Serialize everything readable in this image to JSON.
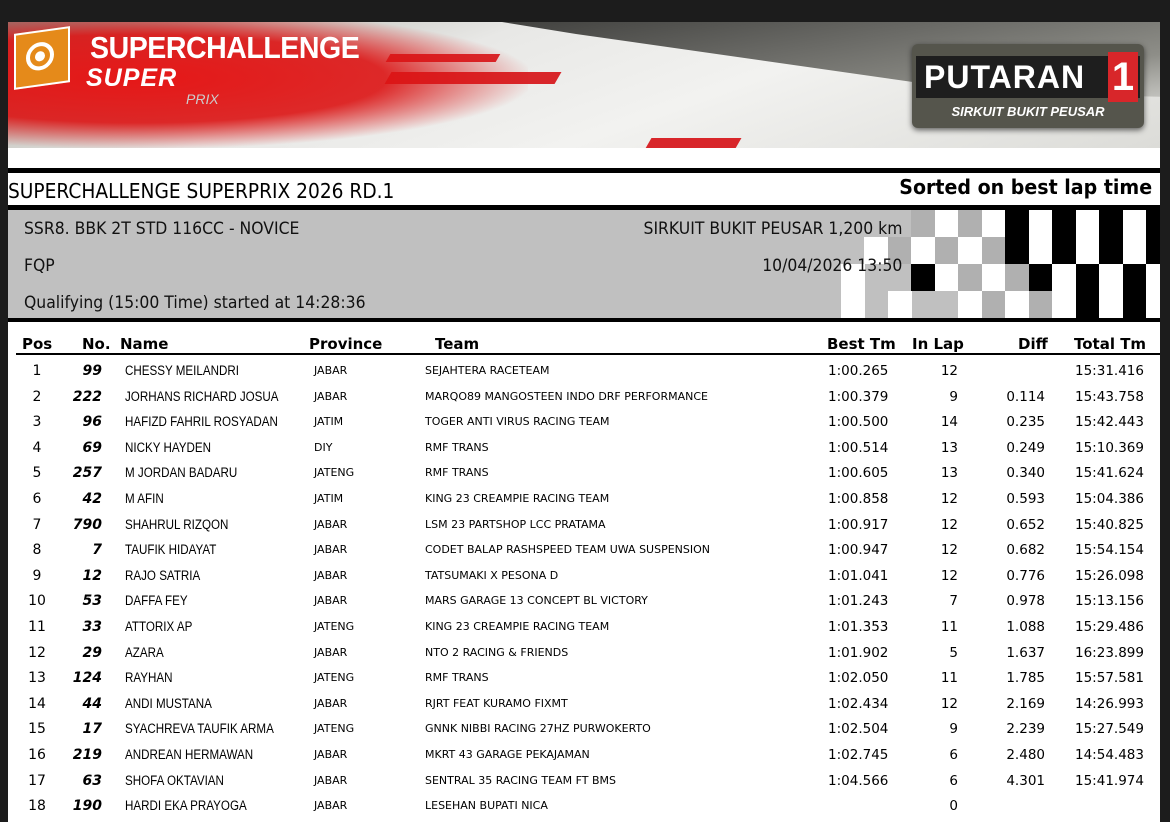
{
  "banner": {
    "brand_title": "SUPERCHALLENGE",
    "brand_sub": "SUPER",
    "brand_sub2": "PRIX",
    "round_label": "PUTARAN",
    "round_number": "1",
    "circuit": "SIRKUIT BUKIT PEUSAR",
    "accent_color": "#d8262a"
  },
  "event": {
    "title": "SUPERCHALLENGE SUPERPRIX 2026 RD.1",
    "sort_label": "Sorted on best lap time",
    "class_name": "SSR8. BBK 2T STD 116CC - NOVICE",
    "circuit_length": "SIRKUIT BUKIT PEUSAR 1,200 km",
    "session_code": "FQP",
    "datetime": "10/04/2026 13:50",
    "session_info": "Qualifying (15:00 Time) started at 14:28:36"
  },
  "table": {
    "headers": {
      "pos": "Pos",
      "no": "No.",
      "name": "Name",
      "province": "Province",
      "team": "Team",
      "best": "Best Tm",
      "lap": "In Lap",
      "diff": "Diff",
      "total": "Total Tm"
    },
    "rows": [
      {
        "pos": "1",
        "no": "99",
        "name": "CHESSY MEILANDRI",
        "province": "JABAR",
        "team": "SEJAHTERA RACETEAM",
        "best": "1:00.265",
        "lap": "12",
        "diff": "",
        "total": "15:31.416"
      },
      {
        "pos": "2",
        "no": "222",
        "name": "JORHANS RICHARD JOSUA",
        "province": "JABAR",
        "team": "MARQO89 MANGOSTEEN INDO DRF PERFORMANCE",
        "best": "1:00.379",
        "lap": "9",
        "diff": "0.114",
        "total": "15:43.758"
      },
      {
        "pos": "3",
        "no": "96",
        "name": "HAFIZD FAHRIL ROSYADAN",
        "province": "JATIM",
        "team": "TOGER ANTI VIRUS RACING TEAM",
        "best": "1:00.500",
        "lap": "14",
        "diff": "0.235",
        "total": "15:42.443"
      },
      {
        "pos": "4",
        "no": "69",
        "name": "NICKY HAYDEN",
        "province": "DIY",
        "team": "RMF TRANS",
        "best": "1:00.514",
        "lap": "13",
        "diff": "0.249",
        "total": "15:10.369"
      },
      {
        "pos": "5",
        "no": "257",
        "name": "M JORDAN BADARU",
        "province": "JATENG",
        "team": "RMF TRANS",
        "best": "1:00.605",
        "lap": "13",
        "diff": "0.340",
        "total": "15:41.624"
      },
      {
        "pos": "6",
        "no": "42",
        "name": "M AFIN",
        "province": "JATIM",
        "team": "KING 23 CREAMPIE RACING TEAM",
        "best": "1:00.858",
        "lap": "12",
        "diff": "0.593",
        "total": "15:04.386"
      },
      {
        "pos": "7",
        "no": "790",
        "name": "SHAHRUL RIZQON",
        "province": "JABAR",
        "team": "LSM 23 PARTSHOP LCC PRATAMA",
        "best": "1:00.917",
        "lap": "12",
        "diff": "0.652",
        "total": "15:40.825"
      },
      {
        "pos": "8",
        "no": "7",
        "name": "TAUFIK HIDAYAT",
        "province": "JABAR",
        "team": "CODET BALAP RASHSPEED TEAM UWA SUSPENSION",
        "best": "1:00.947",
        "lap": "12",
        "diff": "0.682",
        "total": "15:54.154"
      },
      {
        "pos": "9",
        "no": "12",
        "name": "RAJO SATRIA",
        "province": "JABAR",
        "team": "TATSUMAKI X PESONA D",
        "best": "1:01.041",
        "lap": "12",
        "diff": "0.776",
        "total": "15:26.098"
      },
      {
        "pos": "10",
        "no": "53",
        "name": "DAFFA FEY",
        "province": "JABAR",
        "team": "MARS GARAGE 13 CONCEPT BL VICTORY",
        "best": "1:01.243",
        "lap": "7",
        "diff": "0.978",
        "total": "15:13.156"
      },
      {
        "pos": "11",
        "no": "33",
        "name": "ATTORIX AP",
        "province": "JATENG",
        "team": "KING 23 CREAMPIE RACING TEAM",
        "best": "1:01.353",
        "lap": "11",
        "diff": "1.088",
        "total": "15:29.486"
      },
      {
        "pos": "12",
        "no": "29",
        "name": "AZARA",
        "province": "JABAR",
        "team": "NTO 2 RACING & FRIENDS",
        "best": "1:01.902",
        "lap": "5",
        "diff": "1.637",
        "total": "16:23.899"
      },
      {
        "pos": "13",
        "no": "124",
        "name": "RAYHAN",
        "province": "JATENG",
        "team": "RMF TRANS",
        "best": "1:02.050",
        "lap": "11",
        "diff": "1.785",
        "total": "15:57.581"
      },
      {
        "pos": "14",
        "no": "44",
        "name": "ANDI MUSTANA",
        "province": "JABAR",
        "team": "RJRT FEAT KURAMO FIXMT",
        "best": "1:02.434",
        "lap": "12",
        "diff": "2.169",
        "total": "14:26.993"
      },
      {
        "pos": "15",
        "no": "17",
        "name": "SYACHREVA TAUFIK ARMA",
        "province": "JATENG",
        "team": "GNNK NIBBI RACING 27HZ PURWOKERTO",
        "best": "1:02.504",
        "lap": "9",
        "diff": "2.239",
        "total": "15:27.549"
      },
      {
        "pos": "16",
        "no": "219",
        "name": "ANDREAN HERMAWAN",
        "province": "JABAR",
        "team": "MKRT 43 GARAGE PEKAJAMAN",
        "best": "1:02.745",
        "lap": "6",
        "diff": "2.480",
        "total": "14:54.483"
      },
      {
        "pos": "17",
        "no": "63",
        "name": "SHOFA OKTAVIAN",
        "province": "JABAR",
        "team": "SENTRAL 35 RACING TEAM FT BMS",
        "best": "1:04.566",
        "lap": "6",
        "diff": "4.301",
        "total": "15:41.974"
      },
      {
        "pos": "18",
        "no": "190",
        "name": "HARDI EKA PRAYOGA",
        "province": "JABAR",
        "team": "LESEHAN BUPATI NICA",
        "best": "",
        "lap": "0",
        "diff": "",
        "total": ""
      }
    ]
  }
}
